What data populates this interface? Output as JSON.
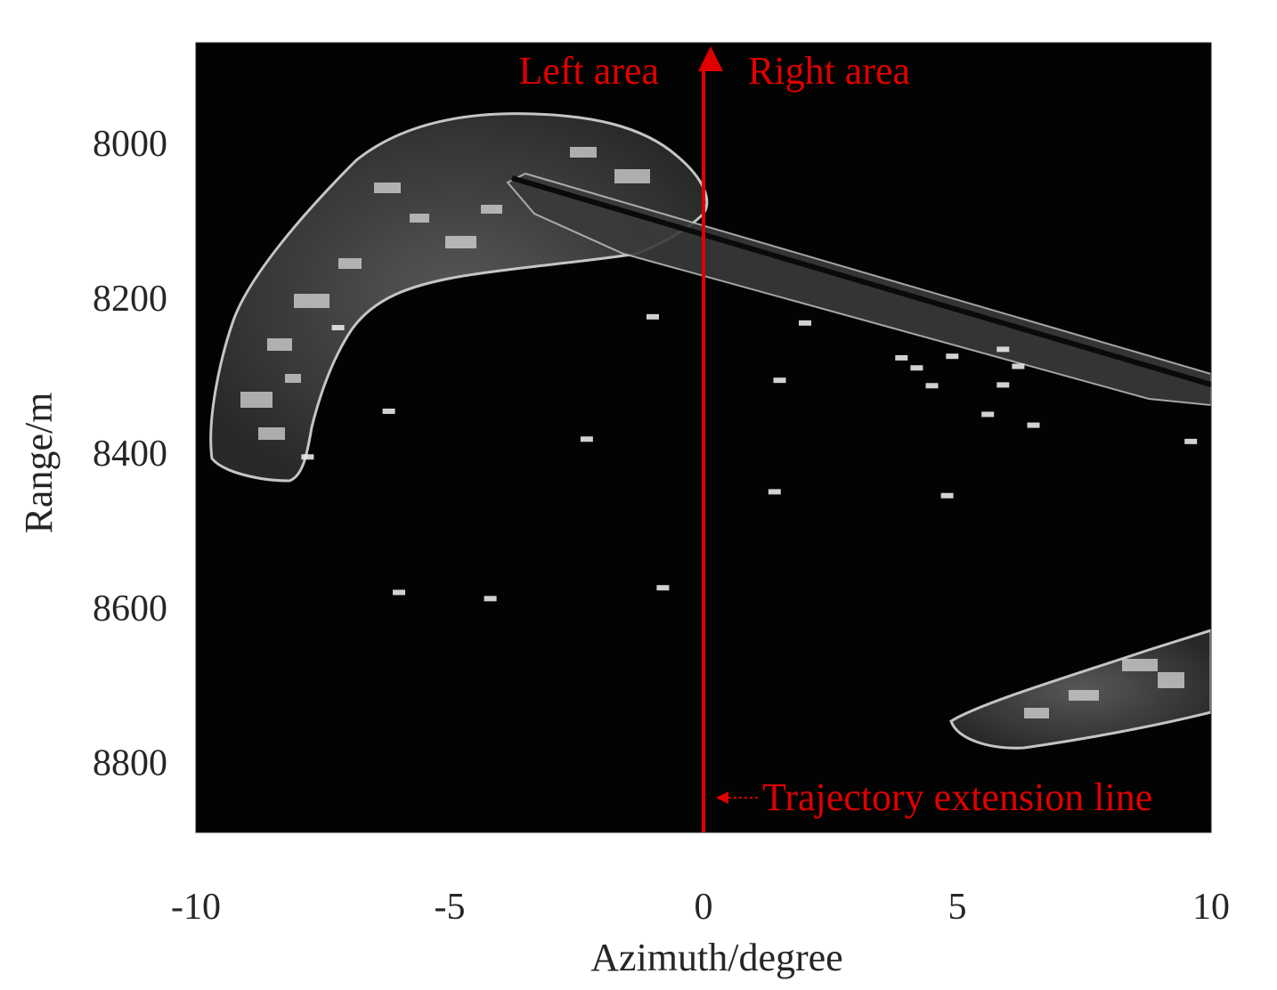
{
  "chart_data": {
    "type": "heatmap",
    "image_description": "SAR image",
    "xlabel": "Azimuth/degree",
    "ylabel": "Range/m",
    "xlim": [
      -10,
      10
    ],
    "ylim": [
      8890,
      7870
    ],
    "y_reversed": true,
    "x_ticks": [
      -10,
      -5,
      0,
      5,
      10
    ],
    "x_tick_labels": [
      "-10",
      "-5",
      "0",
      "5",
      "10"
    ],
    "y_ticks": [
      8000,
      8200,
      8400,
      8600,
      8800
    ],
    "y_tick_labels": [
      "8000",
      "8200",
      "8400",
      "8600",
      "8800"
    ],
    "grid": false,
    "colormap": "gray",
    "annotations": {
      "left_area": "Left area",
      "right_area": "Right area",
      "trajectory": "Trajectory extension line"
    },
    "trajectory_line": {
      "x": 0
    },
    "targets": [
      {
        "x": 2.0,
        "y": 8232
      },
      {
        "x": 3.9,
        "y": 8277
      },
      {
        "x": 4.2,
        "y": 8290
      },
      {
        "x": 4.9,
        "y": 8275
      },
      {
        "x": 5.9,
        "y": 8266
      },
      {
        "x": 6.2,
        "y": 8288
      },
      {
        "x": 1.5,
        "y": 8306
      },
      {
        "x": 4.5,
        "y": 8313
      },
      {
        "x": 5.9,
        "y": 8312
      },
      {
        "x": 5.6,
        "y": 8350
      },
      {
        "x": 6.5,
        "y": 8364
      },
      {
        "x": -6.2,
        "y": 8346
      },
      {
        "x": -2.3,
        "y": 8382
      },
      {
        "x": 1.4,
        "y": 8450
      },
      {
        "x": 4.8,
        "y": 8455
      },
      {
        "x": -0.8,
        "y": 8574
      },
      {
        "x": -6.0,
        "y": 8580
      },
      {
        "x": -4.2,
        "y": 8588
      },
      {
        "x": -7.8,
        "y": 8405
      },
      {
        "x": -1.0,
        "y": 8224
      },
      {
        "x": -7.2,
        "y": 8238
      },
      {
        "x": 9.6,
        "y": 8385
      }
    ],
    "colors": {
      "annotation": "#e00000",
      "background": "#030303",
      "land": "#8a8a8a"
    }
  }
}
